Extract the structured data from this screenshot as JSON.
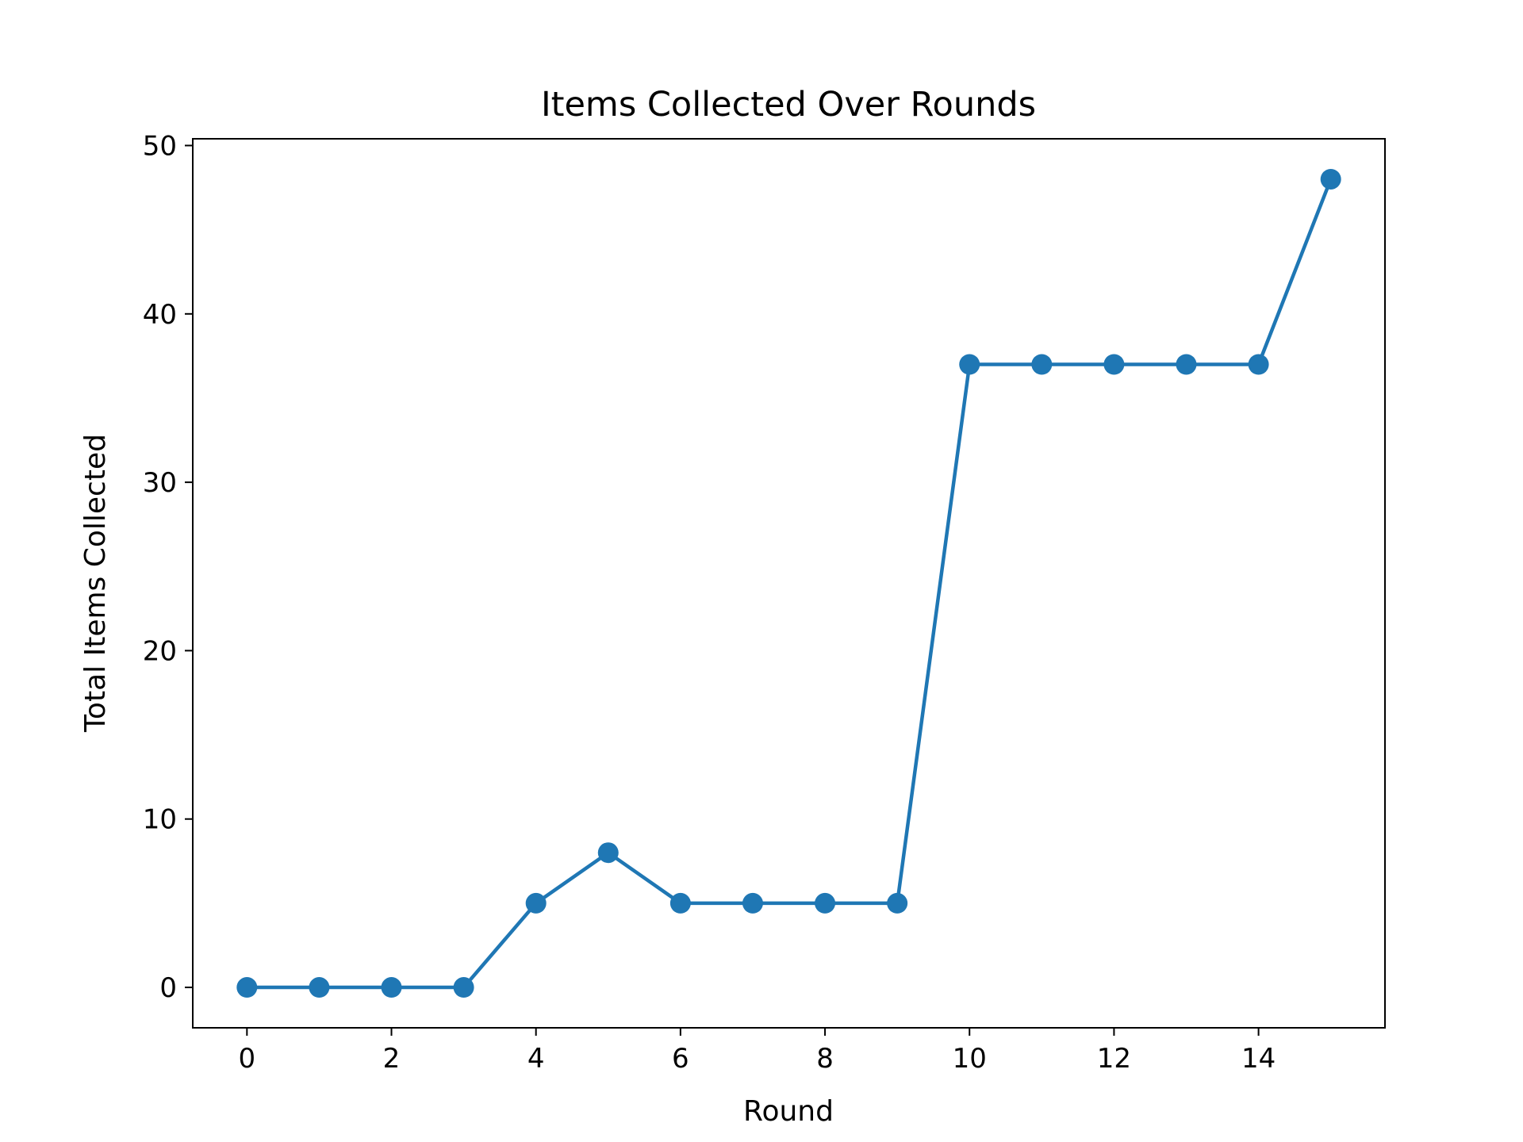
{
  "chart_data": {
    "type": "line",
    "title": "Items Collected Over Rounds",
    "xlabel": "Round",
    "ylabel": "Total Items Collected",
    "x": [
      0,
      1,
      2,
      3,
      4,
      5,
      6,
      7,
      8,
      9,
      10,
      11,
      12,
      13,
      14,
      15
    ],
    "series": [
      {
        "values": [
          0,
          0,
          0,
          0,
          5,
          8,
          5,
          5,
          5,
          5,
          37,
          37,
          37,
          37,
          37,
          48
        ]
      }
    ],
    "xlim": [
      -0.75,
      15.75
    ],
    "ylim": [
      -2.4,
      50.4
    ],
    "xticks": [
      0,
      2,
      4,
      6,
      8,
      10,
      12,
      14
    ],
    "yticks": [
      0,
      10,
      20,
      30,
      40,
      50
    ],
    "grid": false,
    "line_color": "#1f77b4",
    "marker": "circle"
  }
}
